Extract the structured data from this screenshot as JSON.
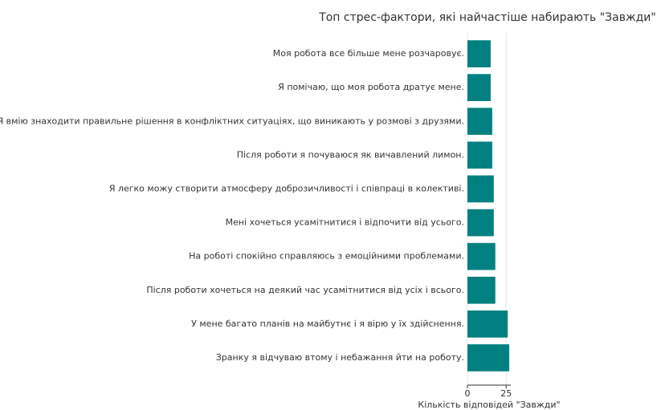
{
  "chart_data": {
    "type": "hbar",
    "title": "Топ стрес-фактори, які найчастіше набирають \"Завжди\"",
    "x_label": "Кількість відповідей \"Завжди\"",
    "categories": [
      "Моя робота все більше мене розчаровує.",
      "Я помічаю, що моя робота дратує мене.",
      "Я вмію знаходити правильне рішення в конфліктних ситуаціях, що виникають у розмові з друзями.",
      "Після роботи я почуваюся як вичавлений лимон.",
      "Я легко можу створити атмосферу доброзичливості і співпраці в колективі.",
      "Мені хочеться усамітнитися і відпочити від усього.",
      "На роботі спокійно справляюсь з емоційними проблемами.",
      "Після роботи хочеться на деякий час усамітнитися від усіх і всього.",
      "У мене багато планів на майбутнє і я вірю у їх здійснення.",
      "Зранку я відчуваю втому і небажання йти на роботу."
    ],
    "values": [
      15,
      15,
      16,
      16,
      17,
      17,
      18,
      18,
      26,
      27
    ],
    "color": "#008080",
    "xlim": [
      0,
      28
    ],
    "xticks": [
      0,
      25
    ],
    "grid": true
  }
}
